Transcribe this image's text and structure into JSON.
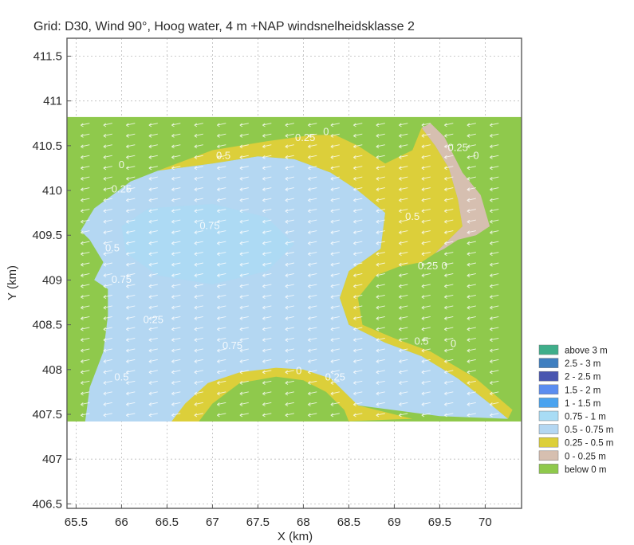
{
  "chart_data": {
    "type": "heatmap",
    "title": "Grid: D30, Wind 90°, Hoog water, 4 m +NAP windsnelheidsklasse 2",
    "xlabel": "X (km)",
    "ylabel": "Y (km)",
    "xlim": [
      65.4,
      70.4
    ],
    "ylim": [
      406.45,
      411.7
    ],
    "x_ticks": [
      "65.5",
      "66",
      "66.5",
      "67",
      "67.5",
      "68",
      "68.5",
      "69",
      "69.5",
      "70"
    ],
    "y_ticks": [
      "406.5",
      "407",
      "407.5",
      "408",
      "408.5",
      "409",
      "409.5",
      "410",
      "410.5",
      "411",
      "411.5"
    ],
    "grid": true,
    "grid_extent": {
      "x": [
        65.4,
        70.4
      ],
      "y": [
        407.42,
        410.82
      ]
    },
    "legend_position": "right",
    "legend": [
      {
        "label": "above 3 m",
        "color": "#3fae8a"
      },
      {
        "label": "2.5 - 3 m",
        "color": "#3f7fc0"
      },
      {
        "label": "2 - 2.5 m",
        "color": "#4a56b0"
      },
      {
        "label": "1.5 - 2 m",
        "color": "#5b8df0"
      },
      {
        "label": "1 - 1.5 m",
        "color": "#4aa3ef"
      },
      {
        "label": "0.75 - 1 m",
        "color": "#a8dcf5"
      },
      {
        "label": "0.5 - 0.75 m",
        "color": "#b4d7f2"
      },
      {
        "label": "0.25 - 0.5 m",
        "color": "#dccf3a"
      },
      {
        "label": "0 - 0.25 m",
        "color": "#d6bfb0"
      },
      {
        "label": "below 0 m",
        "color": "#8fc94c"
      }
    ],
    "wind_direction_deg": 90,
    "contour_labels": [
      {
        "text": "0",
        "x": 68.25,
        "y": 410.62
      },
      {
        "text": "0.25",
        "x": 68.02,
        "y": 410.55
      },
      {
        "text": "0.5",
        "x": 67.12,
        "y": 410.35
      },
      {
        "text": "0",
        "x": 66.0,
        "y": 410.25
      },
      {
        "text": "0.25",
        "x": 69.7,
        "y": 410.44
      },
      {
        "text": "0",
        "x": 69.9,
        "y": 410.35
      },
      {
        "text": "0.25",
        "x": 66.0,
        "y": 409.98
      },
      {
        "text": "0.75",
        "x": 66.97,
        "y": 409.57
      },
      {
        "text": "0.5",
        "x": 69.2,
        "y": 409.67
      },
      {
        "text": "0.5",
        "x": 65.9,
        "y": 409.32
      },
      {
        "text": "0.25",
        "x": 69.37,
        "y": 409.12
      },
      {
        "text": "0",
        "x": 69.55,
        "y": 409.12
      },
      {
        "text": "0.75",
        "x": 66.0,
        "y": 408.97
      },
      {
        "text": "0.25",
        "x": 66.35,
        "y": 408.52
      },
      {
        "text": "0.5",
        "x": 69.3,
        "y": 408.28
      },
      {
        "text": "0",
        "x": 69.65,
        "y": 408.25
      },
      {
        "text": "0.75",
        "x": 67.22,
        "y": 408.23
      },
      {
        "text": "0",
        "x": 67.95,
        "y": 407.95
      },
      {
        "text": "0.5",
        "x": 66.0,
        "y": 407.88
      },
      {
        "text": "0.25",
        "x": 68.35,
        "y": 407.88
      }
    ]
  }
}
